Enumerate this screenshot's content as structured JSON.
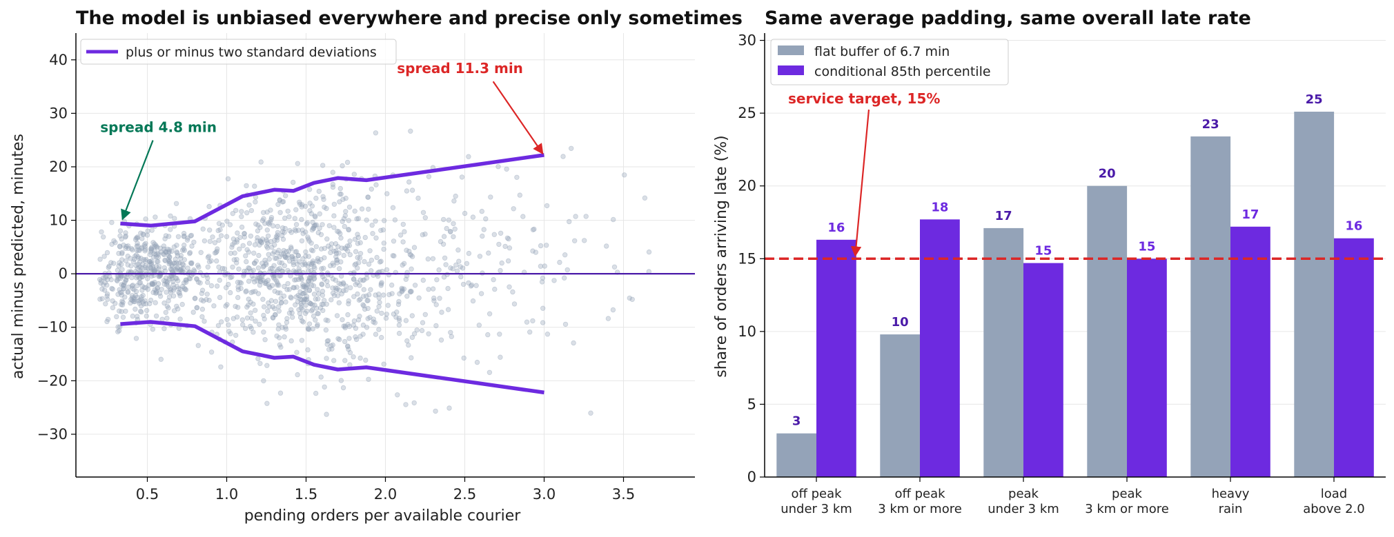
{
  "colors": {
    "purple": "#6d2ae0",
    "purple_dark": "#4a1aa8",
    "gray": "#94a3b8",
    "red": "#dc2626",
    "green": "#047857"
  },
  "chart_data": [
    {
      "type": "scatter",
      "title": "The model is unbiased everywhere and precise only sometimes",
      "xlabel": "pending orders per available courier",
      "ylabel": "actual minus predicted, minutes",
      "xlim": [
        0.05,
        3.95
      ],
      "ylim": [
        -38,
        45
      ],
      "xticks": [
        0.5,
        1.0,
        1.5,
        2.0,
        2.5,
        3.0,
        3.5
      ],
      "xtick_labels": [
        "0.5",
        "1.0",
        "1.5",
        "2.0",
        "2.5",
        "3.0",
        "3.5"
      ],
      "yticks": [
        -30,
        -20,
        -10,
        0,
        10,
        20,
        30,
        40
      ],
      "ytick_labels": [
        "−30",
        "−20",
        "−10",
        "0",
        "10",
        "20",
        "30",
        "40"
      ],
      "grid": true,
      "legend_position": "top-left",
      "series": [
        {
          "name": "plus or minus two standard deviations",
          "x": [
            0.33,
            0.52,
            0.8,
            1.1,
            1.3,
            1.42,
            1.55,
            1.7,
            1.88,
            3.0
          ],
          "upper": [
            9.4,
            9.0,
            9.8,
            14.5,
            15.7,
            15.5,
            17.0,
            17.9,
            17.5,
            22.2
          ],
          "lower": [
            -9.4,
            -9.0,
            -9.8,
            -14.5,
            -15.7,
            -15.5,
            -17.0,
            -17.9,
            -17.5,
            -22.2
          ]
        }
      ],
      "reference_line_y": 0,
      "scatter_note": "approximately 1500 residual points, heteroscedastic, centered on zero",
      "annotations": [
        {
          "text": "spread 4.8 min",
          "color_key": "green",
          "point": [
            0.33,
            9.4
          ],
          "text_at": [
            0.57,
            26.5
          ]
        },
        {
          "text": "spread 11.3 min",
          "color_key": "red",
          "point": [
            3.0,
            22.2
          ],
          "text_at": [
            2.47,
            37.5
          ]
        }
      ]
    },
    {
      "type": "bar",
      "title": "Same average padding, same overall late rate",
      "xlabel": "",
      "ylabel": "share of orders arriving late (%)",
      "ylim": [
        0,
        30.5
      ],
      "yticks": [
        0,
        5,
        10,
        15,
        20,
        25,
        30
      ],
      "ytick_labels": [
        "0",
        "5",
        "10",
        "15",
        "20",
        "25",
        "30"
      ],
      "grid": true,
      "legend_position": "top-left",
      "categories": [
        [
          "off peak",
          "under 3 km"
        ],
        [
          "off peak",
          "3 km or more"
        ],
        [
          "peak",
          "under 3 km"
        ],
        [
          "peak",
          "3 km or more"
        ],
        [
          "heavy",
          "rain"
        ],
        [
          "load",
          "above 2.0"
        ]
      ],
      "series": [
        {
          "name": "flat buffer of 6.7 min",
          "color_key": "gray",
          "values": [
            3.0,
            9.8,
            17.1,
            20.0,
            23.4,
            25.1
          ],
          "labels": [
            "3",
            "10",
            "17",
            "20",
            "23",
            "25"
          ]
        },
        {
          "name": "conditional 85th percentile",
          "color_key": "purple",
          "values": [
            16.3,
            17.7,
            14.7,
            15.0,
            17.2,
            16.4
          ],
          "labels": [
            "16",
            "18",
            "15",
            "15",
            "17",
            "16"
          ]
        }
      ],
      "reference_line_y": 15,
      "annotations": [
        {
          "text": "service target, 15%",
          "color_key": "red",
          "point_category_index": 1,
          "point_y": 15,
          "text_y": 26
        }
      ]
    }
  ]
}
